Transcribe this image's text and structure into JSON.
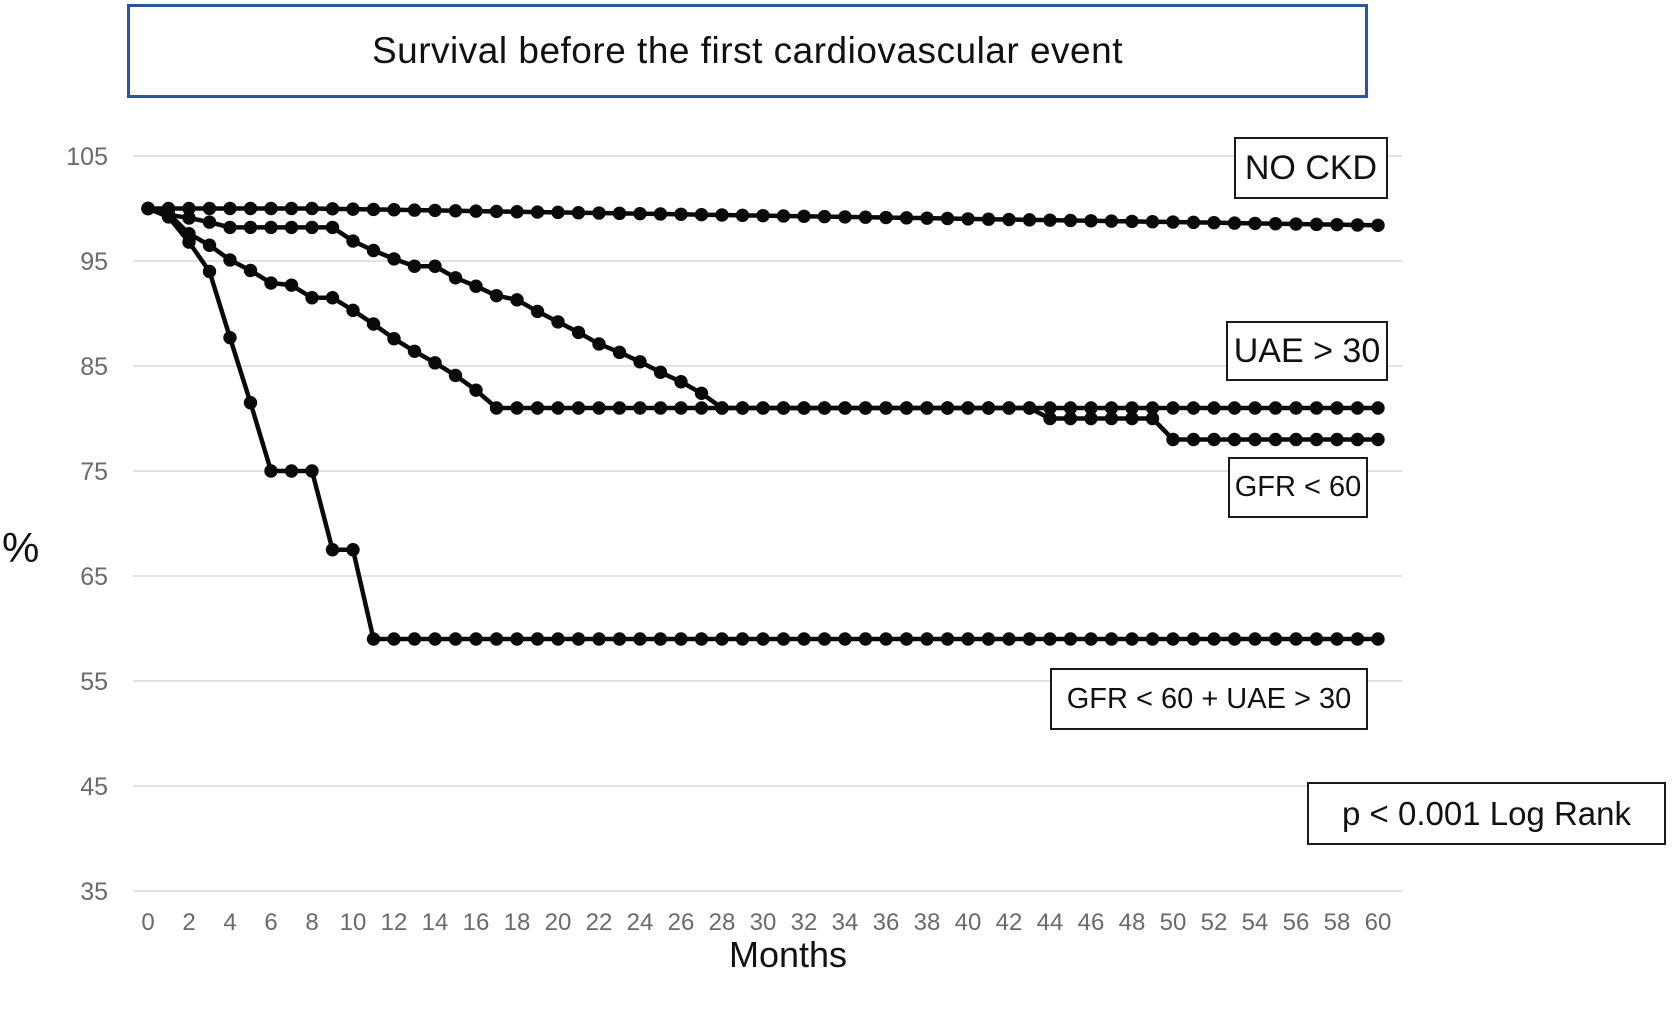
{
  "title": "Survival before the first cardiovascular event",
  "axes": {
    "y_label": "%",
    "x_label": "Months"
  },
  "annotations": {
    "no_ckd": "NO CKD",
    "uae": "UAE > 30",
    "gfr": "GFR < 60",
    "combo": "GFR < 60 + UAE > 30",
    "pvalue": "p < 0.001 Log Rank"
  },
  "colors": {
    "title_border": "#2e5597",
    "series": "#0a0a0a",
    "grid": "#d9d9d9",
    "tick": "#6a6a6a"
  },
  "chart_data": {
    "type": "line",
    "title": "Survival before the first cardiovascular event",
    "xlabel": "Months",
    "ylabel": "%",
    "xlim": [
      0,
      60
    ],
    "ylim": [
      35,
      105
    ],
    "x_ticks": [
      0,
      2,
      4,
      6,
      8,
      10,
      12,
      14,
      16,
      18,
      20,
      22,
      24,
      26,
      28,
      30,
      32,
      34,
      36,
      38,
      40,
      42,
      44,
      46,
      48,
      50,
      52,
      54,
      56,
      58,
      60
    ],
    "y_ticks": [
      105,
      95,
      85,
      75,
      65,
      55,
      45,
      35
    ],
    "grid": "horizontal",
    "legend_position": "inline-boxes",
    "marker": "circle-every-month",
    "log_rank_annotation": "p < 0.001 Log Rank",
    "x": [
      0,
      1,
      2,
      3,
      4,
      5,
      6,
      7,
      8,
      9,
      10,
      11,
      12,
      13,
      14,
      15,
      16,
      17,
      18,
      19,
      20,
      21,
      22,
      23,
      24,
      25,
      26,
      27,
      28,
      29,
      30,
      31,
      32,
      33,
      34,
      35,
      36,
      37,
      38,
      39,
      40,
      41,
      42,
      43,
      44,
      45,
      46,
      47,
      48,
      49,
      50,
      51,
      52,
      53,
      54,
      55,
      56,
      57,
      58,
      59,
      60
    ],
    "series": [
      {
        "name": "NO CKD",
        "values": [
          100,
          100,
          100,
          100,
          100,
          100,
          100,
          100,
          100,
          99.97,
          99.94,
          99.91,
          99.88,
          99.85,
          99.82,
          99.78,
          99.75,
          99.72,
          99.69,
          99.66,
          99.63,
          99.6,
          99.57,
          99.54,
          99.51,
          99.48,
          99.45,
          99.41,
          99.38,
          99.35,
          99.32,
          99.29,
          99.26,
          99.23,
          99.2,
          99.17,
          99.14,
          99.11,
          99.08,
          99.05,
          99.01,
          98.98,
          98.95,
          98.92,
          98.89,
          98.86,
          98.83,
          98.8,
          98.77,
          98.74,
          98.71,
          98.68,
          98.65,
          98.61,
          98.58,
          98.55,
          98.52,
          98.49,
          98.46,
          98.43,
          98.4
        ]
      },
      {
        "name": "UAE > 30",
        "values": [
          100,
          99.4,
          99.1,
          98.7,
          98.2,
          98.2,
          98.2,
          98.2,
          98.2,
          98.2,
          96.9,
          96.0,
          95.2,
          94.5,
          94.5,
          93.4,
          92.6,
          91.7,
          91.3,
          90.2,
          89.2,
          88.2,
          87.1,
          86.3,
          85.4,
          84.4,
          83.5,
          82.4,
          81,
          81,
          81,
          81,
          81,
          81,
          81,
          81,
          81,
          81,
          81,
          81,
          81,
          81,
          81,
          81,
          81,
          81,
          81,
          81,
          81,
          81,
          81,
          81,
          81,
          81,
          81,
          81,
          81,
          81,
          81,
          81,
          81
        ]
      },
      {
        "name": "GFR < 60",
        "values": [
          100,
          99.5,
          97.6,
          96.5,
          95.1,
          94.1,
          92.9,
          92.7,
          91.5,
          91.5,
          90.3,
          89.0,
          87.6,
          86.4,
          85.3,
          84.1,
          82.7,
          81,
          81,
          81,
          81,
          81,
          81,
          81,
          81,
          81,
          81,
          81,
          81,
          81,
          81,
          81,
          81,
          81,
          81,
          81,
          81,
          81,
          81,
          81,
          81,
          81,
          81,
          81,
          80,
          80,
          80,
          80,
          80,
          80,
          78,
          78,
          78,
          78,
          78,
          78,
          78,
          78,
          78,
          78,
          78
        ]
      },
      {
        "name": "GFR < 60 + UAE > 30",
        "values": [
          100,
          99.2,
          96.8,
          94,
          87.7,
          81.5,
          75,
          75,
          75,
          67.5,
          67.5,
          59,
          59,
          59,
          59,
          59,
          59,
          59,
          59,
          59,
          59,
          59,
          59,
          59,
          59,
          59,
          59,
          59,
          59,
          59,
          59,
          59,
          59,
          59,
          59,
          59,
          59,
          59,
          59,
          59,
          59,
          59,
          59,
          59,
          59,
          59,
          59,
          59,
          59,
          59,
          59,
          59,
          59,
          59,
          59,
          59,
          59,
          59,
          59,
          59,
          59
        ]
      }
    ]
  }
}
